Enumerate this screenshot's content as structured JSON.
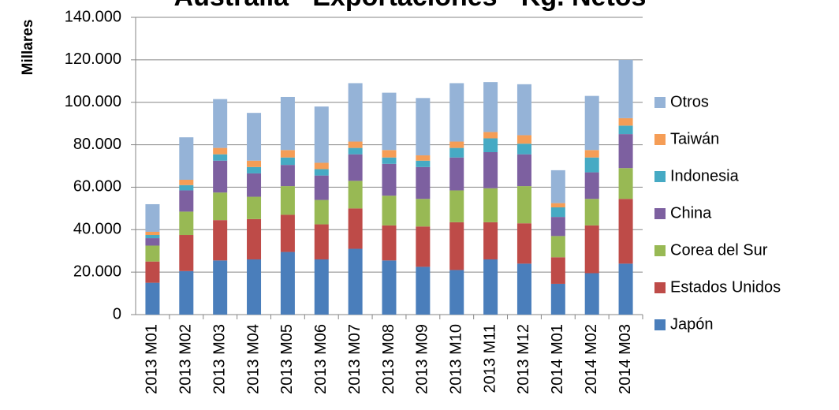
{
  "chart_data": {
    "type": "stacked_bar",
    "title": "Australia - Exportaciones - Kg. Netos",
    "y_label": "Millares",
    "categories": [
      "2013 M01",
      "2013 M02",
      "2013 M03",
      "2013 M04",
      "2013 M05",
      "2013 M06",
      "2013 M07",
      "2013 M08",
      "2013 M09",
      "2013 M10",
      "2013 M11",
      "2013 M12",
      "2014 M01",
      "2014 M02",
      "2014 M03"
    ],
    "series": [
      {
        "name": "Japón",
        "color": "#4a7ebb",
        "values": [
          15000,
          20500,
          25500,
          26000,
          29500,
          26000,
          31000,
          25500,
          22500,
          21000,
          26000,
          24000,
          14500,
          19500,
          24000
        ]
      },
      {
        "name": "Estados Unidos",
        "color": "#be4b48",
        "values": [
          10000,
          17000,
          19000,
          19000,
          17500,
          16500,
          19000,
          16500,
          19000,
          22500,
          17500,
          19000,
          12500,
          22500,
          30500
        ]
      },
      {
        "name": "Corea del Sur",
        "color": "#98b954",
        "values": [
          7500,
          11000,
          13000,
          10500,
          13500,
          11500,
          13000,
          14000,
          13000,
          15000,
          16000,
          17500,
          10000,
          12500,
          14500
        ]
      },
      {
        "name": "China",
        "color": "#7d60a0",
        "values": [
          3500,
          10000,
          15000,
          11000,
          10000,
          11500,
          12500,
          15000,
          15000,
          15500,
          17000,
          15000,
          9000,
          12500,
          16000
        ]
      },
      {
        "name": "Indonesia",
        "color": "#46aac4",
        "values": [
          1500,
          2500,
          3000,
          3000,
          3500,
          3000,
          3000,
          3000,
          3000,
          4500,
          6500,
          5000,
          4500,
          7000,
          4000
        ]
      },
      {
        "name": "Taiwán",
        "color": "#f59d56",
        "values": [
          1500,
          2500,
          3000,
          3000,
          3500,
          3000,
          3000,
          3500,
          2500,
          3000,
          3000,
          4000,
          2000,
          3500,
          3500
        ]
      },
      {
        "name": "Otros",
        "color": "#95b3d7",
        "values": [
          13000,
          20000,
          23000,
          22500,
          25000,
          26500,
          27500,
          27000,
          27000,
          27500,
          23500,
          24000,
          15500,
          25500,
          27500
        ]
      }
    ],
    "ylim": [
      0,
      140000
    ],
    "yticks": [
      0,
      {
        "value": 20000,
        "label": "20.000"
      },
      {
        "value": 40000,
        "label": "40.000"
      },
      {
        "value": 60000,
        "label": "60.000"
      },
      {
        "value": 80000,
        "label": "80.000"
      },
      {
        "value": 100000,
        "label": "100.000"
      },
      {
        "value": 120000,
        "label": "120.000"
      },
      {
        "value": 140000,
        "label": "140.000"
      }
    ],
    "grid": true,
    "legend": "right"
  }
}
